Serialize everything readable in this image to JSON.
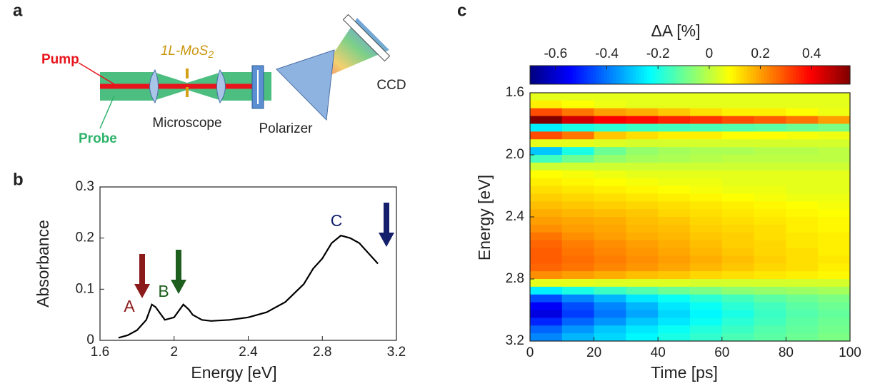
{
  "panel_labels": [
    "a",
    "b",
    "c"
  ],
  "diagram": {
    "pump": "Pump",
    "probe": "Probe",
    "sample": {
      "label": "1L-MoS",
      "subscript": "2"
    },
    "microscope": "Microscope",
    "polarizer": "Polarizer",
    "detector": "CCD"
  },
  "chart_data": [
    {
      "type": "line",
      "xlabel": "Energy [eV]",
      "ylabel": "Absorbance",
      "color": "#000000",
      "x": [
        1.7,
        1.75,
        1.8,
        1.85,
        1.88,
        1.9,
        1.95,
        2.0,
        2.05,
        2.08,
        2.1,
        2.15,
        2.2,
        2.3,
        2.4,
        2.5,
        2.6,
        2.7,
        2.75,
        2.8,
        2.85,
        2.9,
        2.95,
        3.0,
        3.05,
        3.1
      ],
      "y": [
        0.005,
        0.01,
        0.02,
        0.04,
        0.07,
        0.065,
        0.04,
        0.045,
        0.07,
        0.06,
        0.05,
        0.04,
        0.038,
        0.04,
        0.045,
        0.055,
        0.075,
        0.11,
        0.14,
        0.16,
        0.19,
        0.205,
        0.2,
        0.19,
        0.17,
        0.15
      ],
      "xlim": [
        1.6,
        3.2
      ],
      "xticks": [
        1.6,
        2,
        2.4,
        2.8,
        3.2
      ],
      "ylim": [
        0,
        0.3
      ],
      "yticks": [
        0,
        0.1,
        0.2,
        0.3
      ],
      "annotations": [
        "A",
        "B",
        "C"
      ]
    },
    {
      "type": "heatmap",
      "xlabel": "Time [ps]",
      "ylabel": "Energy [eV]",
      "colorbar_label": "ΔA [%]",
      "colormap": "jet",
      "x_bins": [
        0,
        10,
        20,
        30,
        40,
        50,
        60,
        70,
        80,
        90,
        100
      ],
      "y_bins": [
        1.6,
        1.65,
        1.7,
        1.75,
        1.8,
        1.85,
        1.9,
        1.95,
        2.0,
        2.05,
        2.1,
        2.15,
        2.2,
        2.25,
        2.3,
        2.35,
        2.4,
        2.45,
        2.5,
        2.55,
        2.6,
        2.65,
        2.7,
        2.75,
        2.8,
        2.85,
        2.9,
        2.95,
        3.0,
        3.05,
        3.1,
        3.15,
        3.2
      ],
      "y_inverted": true,
      "xlim": [
        0,
        100
      ],
      "xticks": [
        0,
        20,
        40,
        60,
        80,
        100
      ],
      "ylim": [
        1.6,
        3.2
      ],
      "yticks": [
        1.6,
        {
          "value": 2,
          "label": "2.0"
        },
        2.4,
        2.8,
        3.2
      ],
      "clim": [
        -0.7,
        0.55
      ],
      "cticks": [
        -0.6,
        -0.4,
        -0.2,
        0,
        0.2,
        0.4
      ],
      "values": [
        [
          0.05,
          0.05,
          0.05,
          0.05,
          0.05,
          0.05,
          0.05,
          0.05,
          0.05,
          0.05
        ],
        [
          0.1,
          0.08,
          0.06,
          0.05,
          0.05,
          0.05,
          0.05,
          0.05,
          0.05,
          0.05
        ],
        [
          0.3,
          0.25,
          0.2,
          0.18,
          0.15,
          0.12,
          0.1,
          0.1,
          0.08,
          0.06
        ],
        [
          0.55,
          0.45,
          0.4,
          0.38,
          0.35,
          0.33,
          0.3,
          0.28,
          0.25,
          0.2
        ],
        [
          -0.25,
          -0.2,
          -0.18,
          -0.16,
          -0.15,
          -0.14,
          -0.13,
          -0.12,
          -0.1,
          -0.08
        ],
        [
          0.3,
          0.25,
          0.15,
          0.12,
          0.1,
          0.1,
          0.08,
          0.08,
          0.07,
          0.06
        ],
        [
          0.05,
          0.05,
          0.04,
          0.03,
          0.03,
          0.03,
          0.03,
          0.03,
          0.03,
          0.03
        ],
        [
          -0.3,
          -0.2,
          -0.1,
          -0.05,
          -0.03,
          -0.02,
          -0.02,
          -0.01,
          -0.01,
          0
        ],
        [
          -0.15,
          -0.1,
          -0.05,
          -0.03,
          -0.02,
          -0.01,
          0,
          0,
          0,
          0
        ],
        [
          0.02,
          0.02,
          0.02,
          0.02,
          0.02,
          0.02,
          0.02,
          0.02,
          0.02,
          0.02
        ],
        [
          0.08,
          0.07,
          0.06,
          0.05,
          0.05,
          0.05,
          0.05,
          0.05,
          0.05,
          0.05
        ],
        [
          0.1,
          0.09,
          0.08,
          0.07,
          0.06,
          0.06,
          0.05,
          0.05,
          0.05,
          0.05
        ],
        [
          0.12,
          0.11,
          0.1,
          0.09,
          0.08,
          0.07,
          0.06,
          0.06,
          0.05,
          0.05
        ],
        [
          0.14,
          0.13,
          0.12,
          0.11,
          0.1,
          0.09,
          0.08,
          0.07,
          0.06,
          0.06
        ],
        [
          0.16,
          0.15,
          0.14,
          0.13,
          0.12,
          0.11,
          0.1,
          0.09,
          0.08,
          0.07
        ],
        [
          0.18,
          0.17,
          0.16,
          0.15,
          0.13,
          0.12,
          0.11,
          0.1,
          0.09,
          0.08
        ],
        [
          0.2,
          0.19,
          0.18,
          0.16,
          0.15,
          0.13,
          0.12,
          0.11,
          0.1,
          0.09
        ],
        [
          0.22,
          0.2,
          0.19,
          0.17,
          0.16,
          0.14,
          0.13,
          0.12,
          0.1,
          0.09
        ],
        [
          0.25,
          0.22,
          0.2,
          0.18,
          0.17,
          0.15,
          0.14,
          0.12,
          0.11,
          0.1
        ],
        [
          0.27,
          0.24,
          0.22,
          0.2,
          0.18,
          0.16,
          0.14,
          0.13,
          0.11,
          0.1
        ],
        [
          0.28,
          0.25,
          0.23,
          0.21,
          0.19,
          0.17,
          0.15,
          0.13,
          0.12,
          0.1
        ],
        [
          0.28,
          0.26,
          0.24,
          0.22,
          0.2,
          0.18,
          0.16,
          0.14,
          0.12,
          0.11
        ],
        [
          0.27,
          0.25,
          0.23,
          0.21,
          0.19,
          0.17,
          0.15,
          0.13,
          0.12,
          0.1
        ],
        [
          0.22,
          0.2,
          0.18,
          0.16,
          0.15,
          0.13,
          0.12,
          0.11,
          0.1,
          0.09
        ],
        [
          0.05,
          0.05,
          0.04,
          0.04,
          0.04,
          0.03,
          0.03,
          0.03,
          0.03,
          0.03
        ],
        [
          -0.25,
          -0.2,
          -0.16,
          -0.13,
          -0.1,
          -0.08,
          -0.06,
          -0.05,
          -0.04,
          -0.03
        ],
        [
          -0.45,
          -0.38,
          -0.32,
          -0.26,
          -0.22,
          -0.18,
          -0.15,
          -0.12,
          -0.1,
          -0.08
        ],
        [
          -0.55,
          -0.45,
          -0.38,
          -0.32,
          -0.26,
          -0.22,
          -0.18,
          -0.15,
          -0.12,
          -0.1
        ],
        [
          -0.58,
          -0.47,
          -0.4,
          -0.34,
          -0.28,
          -0.24,
          -0.2,
          -0.16,
          -0.13,
          -0.11
        ],
        [
          -0.5,
          -0.42,
          -0.36,
          -0.3,
          -0.26,
          -0.22,
          -0.18,
          -0.15,
          -0.12,
          -0.1
        ],
        [
          -0.42,
          -0.36,
          -0.3,
          -0.26,
          -0.22,
          -0.19,
          -0.16,
          -0.13,
          -0.11,
          -0.09
        ],
        [
          -0.38,
          -0.32,
          -0.28,
          -0.24,
          -0.2,
          -0.17,
          -0.14,
          -0.12,
          -0.1,
          -0.08
        ]
      ]
    }
  ]
}
